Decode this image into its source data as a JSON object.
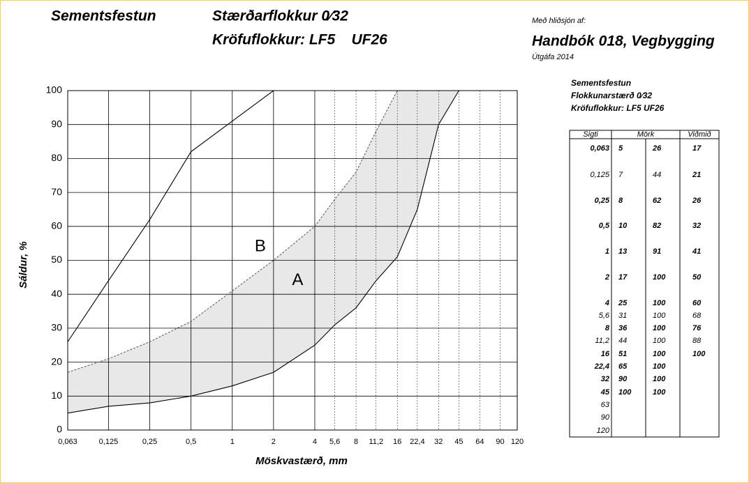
{
  "header": {
    "product": "Sementsfestun",
    "size_class": "Stærðarflokkur 0⁄32",
    "req_class": "Kröfuflokkur: LF5    UF26",
    "ref_intro": "Með hliðsjón af:",
    "ref_title": "Handbók 018, Vegbygging",
    "ref_edition": "Útgáfa 2014"
  },
  "chart_data": {
    "type": "line",
    "x": [
      0.063,
      0.125,
      0.25,
      0.5,
      1,
      2,
      4,
      5.6,
      8,
      11.2,
      16,
      22.4,
      32,
      45
    ],
    "series": [
      {
        "color": "#000000",
        "values": [
          5,
          7,
          8,
          10,
          13,
          17,
          25,
          31,
          36,
          44,
          51,
          65,
          90,
          100
        ]
      },
      {
        "color": "#000000",
        "values": [
          26,
          44,
          62,
          82,
          91,
          100,
          100,
          100,
          100,
          100,
          100,
          100,
          100,
          100
        ]
      },
      {
        "color": "#555555",
        "dashed": true,
        "values": [
          17,
          21,
          26,
          32,
          41,
          50,
          60,
          68,
          76,
          88,
          100,
          null,
          null,
          null
        ]
      }
    ],
    "fill_color": "#e8e8e8",
    "xlabel": "Möskvastærð, mm",
    "ylabel": "Sáldur, %",
    "xscale": "log",
    "xlim": [
      0.063,
      120
    ],
    "ylim": [
      0,
      100
    ],
    "xticks": [
      {
        "value": 0.063,
        "label": "0,063"
      },
      {
        "value": 0.125,
        "label": "0,125"
      },
      {
        "value": 0.25,
        "label": "0,25"
      },
      {
        "value": 0.5,
        "label": "0,5"
      },
      1,
      2,
      4,
      {
        "value": 5.6,
        "label": "5,6"
      },
      8,
      {
        "value": 11.2,
        "label": "11,2"
      },
      16,
      {
        "value": 22.4,
        "label": "22,4"
      },
      32,
      45,
      64,
      90,
      120
    ],
    "yticks": [
      0,
      10,
      20,
      30,
      40,
      50,
      60,
      70,
      80,
      90,
      100
    ],
    "grid": true,
    "annotations": [
      {
        "text": "B",
        "x": 1.6,
        "y": 54
      },
      {
        "text": "A",
        "x": 3,
        "y": 44
      }
    ]
  },
  "table": {
    "caption": [
      "Sementsfestun",
      "Flokkunarstærð 0⁄32",
      "Kröfuflokkur: LF5 UF26"
    ],
    "headers": [
      "Sigti",
      "Mörk",
      "Viðmið"
    ],
    "rows": [
      [
        "0,063",
        5,
        26,
        17
      ],
      [
        "0,125",
        7,
        44,
        21
      ],
      [
        "0,25",
        8,
        62,
        26
      ],
      [
        "0,5",
        10,
        82,
        32
      ],
      [
        "1",
        13,
        91,
        41
      ],
      [
        "2",
        17,
        100,
        50
      ],
      [
        "4",
        25,
        100,
        60
      ],
      [
        "5,6",
        31,
        100,
        68
      ],
      [
        "8",
        36,
        100,
        76
      ],
      [
        "11,2",
        44,
        100,
        88
      ],
      [
        "16",
        51,
        100,
        100
      ],
      [
        "22,4",
        65,
        100
      ],
      [
        "32",
        90,
        100
      ],
      [
        "45",
        100,
        100
      ],
      [
        "63"
      ],
      [
        "90"
      ],
      [
        "120"
      ]
    ]
  }
}
